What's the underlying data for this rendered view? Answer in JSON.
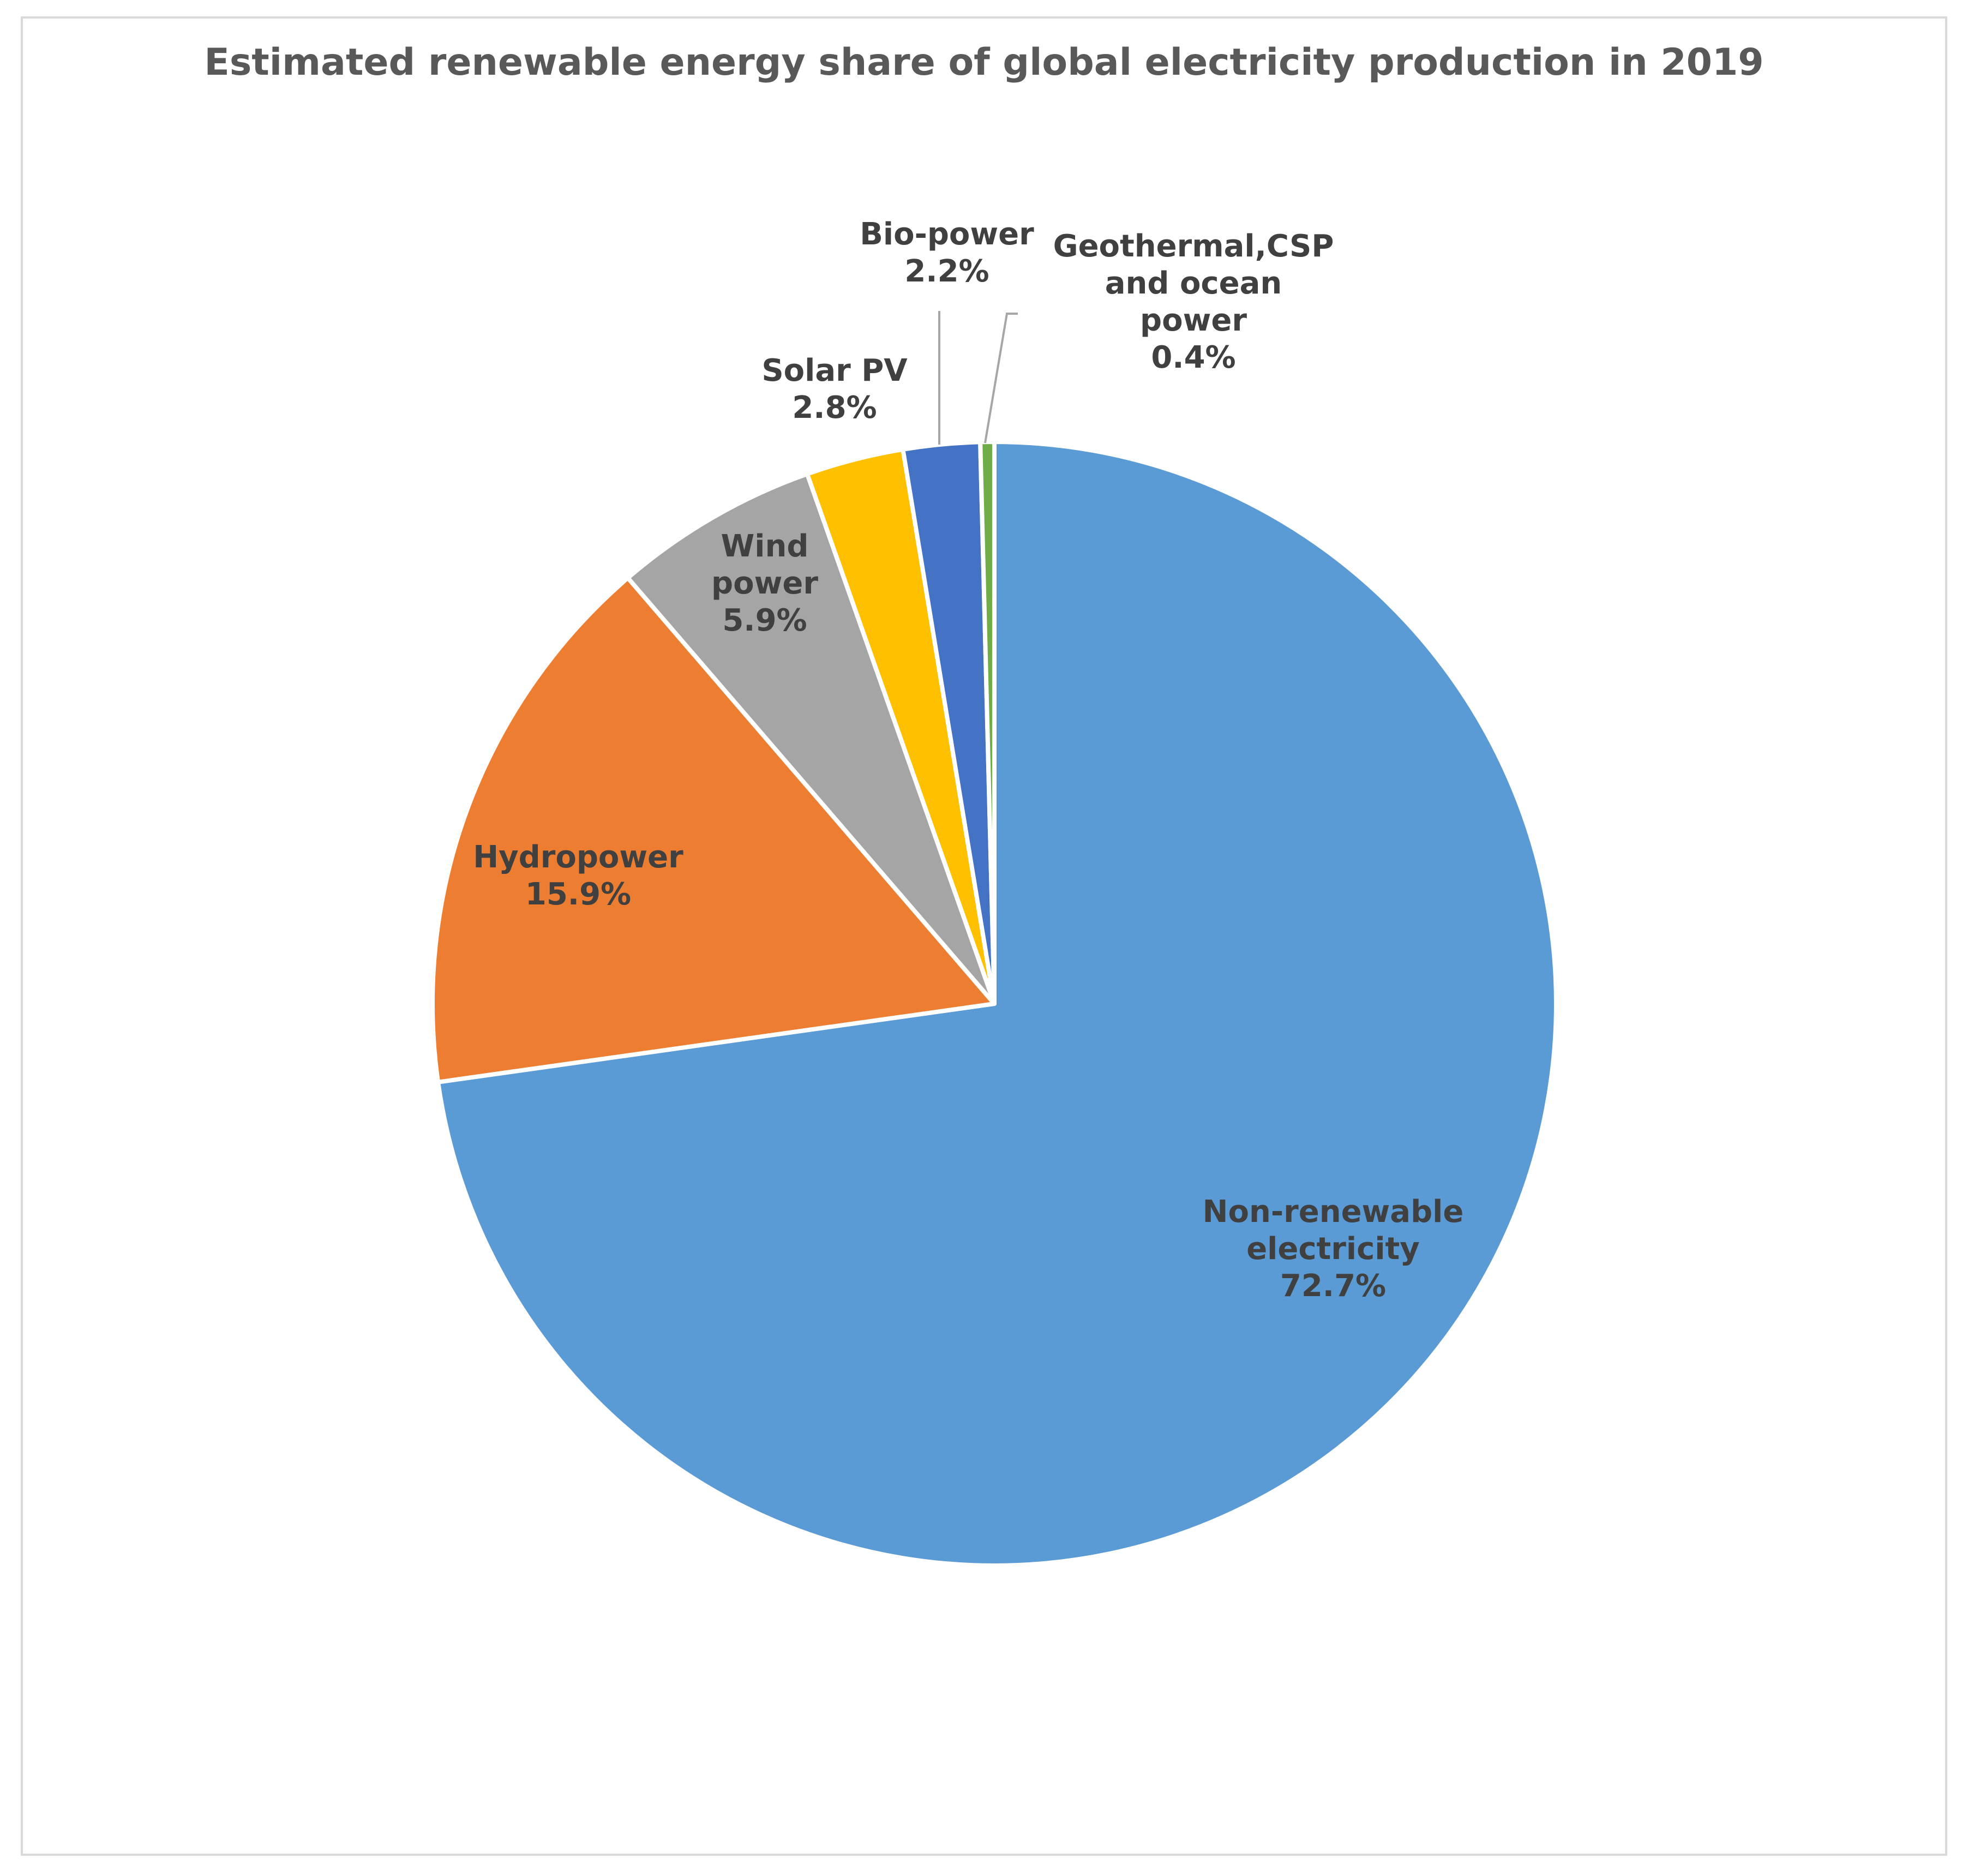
{
  "chart_data": {
    "type": "pie",
    "title": "Estimated renewable energy share of global electricity production in 2019",
    "slices": [
      {
        "label": "Non-renewable electricity",
        "value": 72.7,
        "value_label": "72.7%",
        "color": "#5b9bd5",
        "label_lines": [
          "Non-renewable",
          "electricity",
          "72.7%"
        ]
      },
      {
        "label": "Hydropower",
        "value": 15.9,
        "value_label": "15.9%",
        "color": "#ed7d31",
        "label_lines": [
          "Hydropower",
          "15.9%"
        ]
      },
      {
        "label": "Wind power",
        "value": 5.9,
        "value_label": "5.9%",
        "color": "#a5a5a5",
        "label_lines": [
          "Wind",
          "power",
          "5.9%"
        ]
      },
      {
        "label": "Solar PV",
        "value": 2.8,
        "value_label": "2.8%",
        "color": "#ffc000",
        "label_lines": [
          "Solar PV",
          "2.8%"
        ]
      },
      {
        "label": "Bio-power",
        "value": 2.2,
        "value_label": "2.2%",
        "color": "#4472c4",
        "label_lines": [
          "Bio-power",
          "2.2%"
        ]
      },
      {
        "label": "Geothermal,CSP and ocean power",
        "value": 0.4,
        "value_label": "0.4%",
        "color": "#70ad47",
        "label_lines": [
          "Geothermal,CSP",
          "and ocean",
          "power",
          "0.4%"
        ]
      }
    ],
    "legend": "none",
    "data_labels": "category name and percentage"
  }
}
